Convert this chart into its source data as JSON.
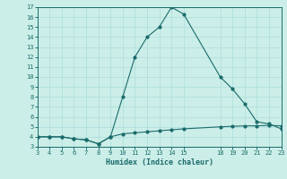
{
  "xlabel": "Humidex (Indice chaleur)",
  "ylabel": "",
  "bg_color": "#cceee8",
  "grid_color": "#aadddd",
  "line_color": "#1a6b6b",
  "x_data": [
    3,
    4,
    5,
    6,
    7,
    8,
    9,
    10,
    11,
    12,
    13,
    14,
    15,
    18,
    19,
    20,
    21,
    22,
    23
  ],
  "y_peak": [
    4,
    4,
    4,
    3.8,
    3.7,
    3.3,
    4,
    8,
    12,
    14,
    15,
    17,
    16.3,
    10,
    8.8,
    7.3,
    5.5,
    5.3,
    4.8
  ],
  "y_low": [
    4,
    4,
    4,
    3.8,
    3.7,
    3.3,
    4,
    4.3,
    4.4,
    4.5,
    4.6,
    4.7,
    4.8,
    5.0,
    5.05,
    5.1,
    5.1,
    5.15,
    5.1
  ],
  "xlim": [
    3,
    23
  ],
  "ylim": [
    3,
    17
  ],
  "xticks": [
    3,
    4,
    5,
    6,
    7,
    8,
    9,
    10,
    11,
    12,
    13,
    14,
    15,
    18,
    19,
    20,
    21,
    22,
    23
  ],
  "yticks": [
    3,
    4,
    5,
    6,
    7,
    8,
    9,
    10,
    11,
    12,
    13,
    14,
    15,
    16,
    17
  ]
}
